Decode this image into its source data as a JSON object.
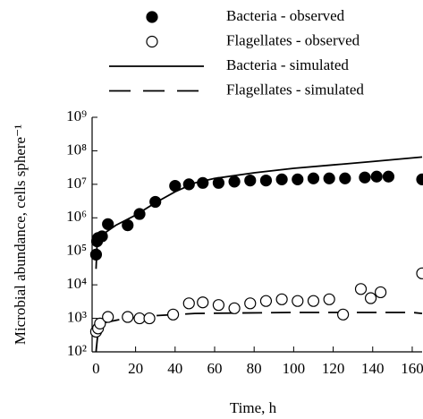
{
  "chart_data": {
    "type": "scatter",
    "x_label": "Time, h",
    "y_label": "Microbial abundance, cells sphere⁻¹",
    "xlim": [
      -2,
      165
    ],
    "ylim": [
      100,
      1000000000
    ],
    "log_y": true,
    "xticks": [
      0,
      20,
      40,
      60,
      80,
      100,
      120,
      140,
      160
    ],
    "yticks": [
      {
        "value": 100,
        "label": "10²"
      },
      {
        "value": 1000,
        "label": "10³"
      },
      {
        "value": 10000,
        "label": "10⁴"
      },
      {
        "value": 100000,
        "label": "10⁵"
      },
      {
        "value": 1000000,
        "label": "10⁶"
      },
      {
        "value": 10000000,
        "label": "10⁷"
      },
      {
        "value": 100000000,
        "label": "10⁸"
      },
      {
        "value": 1000000000,
        "label": "10⁹"
      }
    ],
    "series": [
      {
        "name": "Bacteria - observed",
        "kind": "points",
        "marker": "filled",
        "color": "#000000",
        "x": [
          0,
          0.5,
          1,
          3,
          6,
          16,
          22,
          30,
          40,
          47,
          54,
          62,
          70,
          78,
          86,
          94,
          102,
          110,
          118,
          126,
          136,
          142,
          148,
          165
        ],
        "values": [
          80000,
          200000,
          250000,
          280000,
          650000,
          600000,
          1300000,
          3000000,
          9000000,
          10000000,
          11000000,
          11000000,
          12000000,
          13000000,
          13000000,
          14000000,
          14000000,
          15000000,
          15000000,
          15000000,
          16000000,
          17000000,
          17000000,
          14000000
        ]
      },
      {
        "name": "Flagellates - observed",
        "kind": "points",
        "marker": "open",
        "color": "#000000",
        "x": [
          0,
          1,
          2,
          6,
          16,
          22,
          27,
          39,
          47,
          54,
          62,
          70,
          78,
          86,
          94,
          102,
          110,
          118,
          125,
          134,
          139,
          144,
          165
        ],
        "values": [
          400,
          500,
          700,
          1100,
          1100,
          1000,
          1000,
          1300,
          2800,
          3000,
          2500,
          2000,
          2800,
          3300,
          3700,
          3300,
          3300,
          3700,
          1300,
          7500,
          4000,
          6000,
          22000
        ]
      },
      {
        "name": "Bacteria - simulated",
        "kind": "line",
        "dash": "solid",
        "color": "#000000",
        "x": [
          0,
          0.5,
          2,
          10,
          20,
          30,
          40,
          50,
          60,
          80,
          100,
          120,
          140,
          165
        ],
        "values": [
          30000,
          150000,
          280000,
          600000,
          1200000,
          2800000,
          6000000,
          11000000,
          15000000,
          22000000,
          30000000,
          38000000,
          48000000,
          65000000
        ]
      },
      {
        "name": "Flagellates - simulated",
        "kind": "line",
        "dash": "dashed",
        "color": "#000000",
        "x": [
          0,
          1,
          2,
          15,
          30,
          50,
          100,
          160,
          165
        ],
        "values": [
          100,
          400,
          700,
          1000,
          1200,
          1400,
          1500,
          1500,
          1400
        ]
      }
    ]
  }
}
